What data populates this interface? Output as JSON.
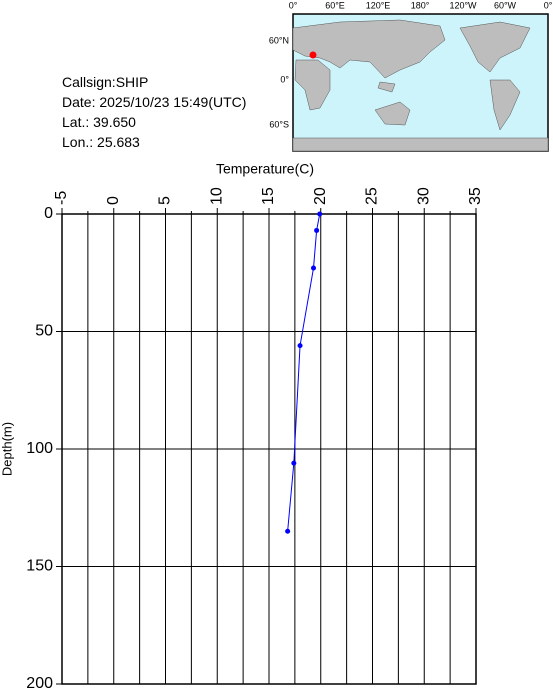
{
  "chart_data": {
    "type": "profile",
    "x_label": "Temperature(C)",
    "y_label": "Depth(m)",
    "xlim": [
      -5,
      35
    ],
    "xticks": [
      -5,
      0,
      5,
      10,
      15,
      20,
      25,
      30,
      35
    ],
    "xminorticks": [
      -2.5,
      2.5,
      7.5,
      12.5,
      17.5,
      22.5,
      27.5,
      32.5
    ],
    "ylim": [
      0,
      200
    ],
    "yticks": [
      0,
      50,
      100,
      150,
      200
    ],
    "grid": true,
    "color": "#0000ff",
    "depth": [
      0,
      7,
      23,
      56,
      106,
      135
    ],
    "values": [
      19.9,
      19.6,
      19.3,
      18.0,
      17.4,
      16.8
    ]
  },
  "info": {
    "lines": [
      "Callsign:SHIP",
      "Date:  2025/10/23 15:49(UTC)",
      "Lat.:   39.650",
      "Lon.:   25.683"
    ]
  },
  "map": {
    "lon_labels": [
      "0°",
      "60°E",
      "120°E",
      "180°",
      "120°W",
      "60°W",
      "0°"
    ],
    "lat_labels": [
      "60°N",
      "0°",
      "60°S"
    ]
  }
}
